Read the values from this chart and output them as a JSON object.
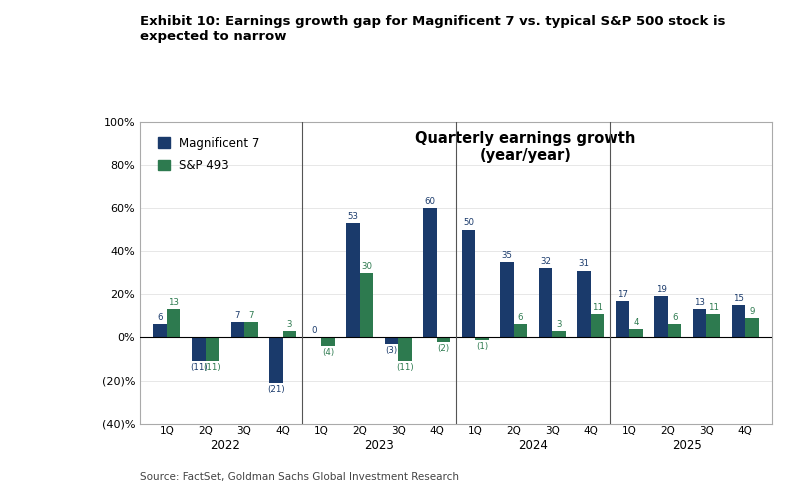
{
  "title": "Exhibit 10: Earnings growth gap for Magnificent 7 vs. typical S&P 500 stock is\nexpected to narrow",
  "subtitle": "Quarterly earnings growth\n(year/year)",
  "source": "Source: FactSet, Goldman Sachs Global Investment Research",
  "legend_labels": [
    "Magnificent 7",
    "S&P 493"
  ],
  "mag7_color": "#1a3a6b",
  "sp493_color": "#2d7a4f",
  "quarters": [
    "1Q",
    "2Q",
    "3Q",
    "4Q",
    "1Q",
    "2Q",
    "3Q",
    "4Q",
    "1Q",
    "2Q",
    "3Q",
    "4Q",
    "1Q",
    "2Q",
    "3Q",
    "4Q"
  ],
  "mag7_values": [
    6,
    -11,
    7,
    -21,
    0,
    53,
    -3,
    60,
    50,
    35,
    32,
    31,
    17,
    19,
    13,
    15
  ],
  "sp493_values": [
    13,
    -11,
    7,
    3,
    -4,
    30,
    -11,
    -2,
    -1,
    6,
    3,
    11,
    4,
    6,
    11,
    9
  ],
  "ylim": [
    -40,
    100
  ],
  "yticks": [
    -40,
    -20,
    0,
    20,
    40,
    60,
    80,
    100
  ],
  "ytick_labels": [
    "(40)%",
    "(20)%",
    "0%",
    "20%",
    "40%",
    "60%",
    "80%",
    "100%"
  ],
  "year_groups": [
    {
      "label": "2022",
      "indices": [
        0,
        1,
        2,
        3
      ]
    },
    {
      "label": "2023",
      "indices": [
        4,
        5,
        6,
        7
      ]
    },
    {
      "label": "2024",
      "indices": [
        8,
        9,
        10,
        11
      ]
    },
    {
      "label": "2025",
      "indices": [
        12,
        13,
        14,
        15
      ]
    }
  ],
  "bar_width": 0.35,
  "background_color": "#ffffff",
  "plot_border_color": "#aaaaaa",
  "grid_color": "#dddddd"
}
